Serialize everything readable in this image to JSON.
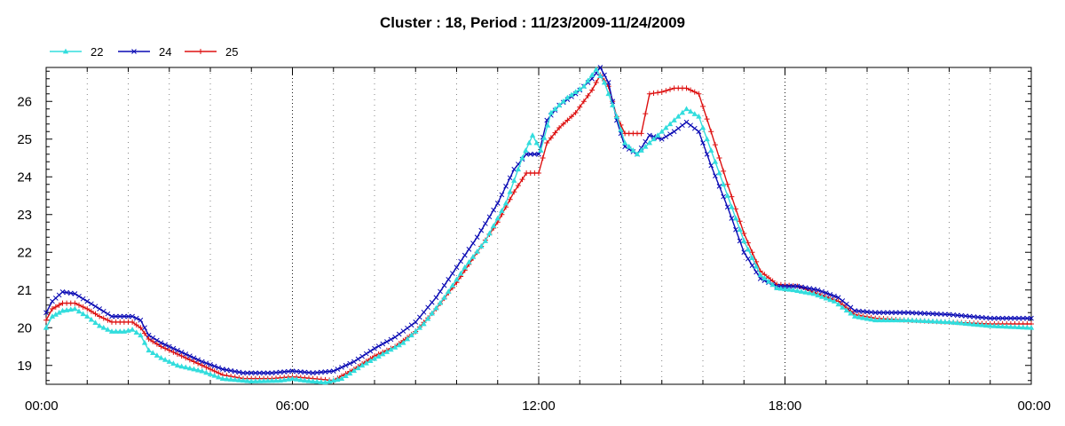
{
  "chart_data": {
    "type": "line",
    "title": "Cluster : 18, Period : 11/23/2009-11/24/2009",
    "xlabel": "",
    "ylabel": "",
    "x_ticks": [
      "00:00",
      "06:00",
      "12:00",
      "18:00",
      "00:00"
    ],
    "y_ticks": [
      "19",
      "20",
      "21",
      "22",
      "23",
      "24",
      "25",
      "26"
    ],
    "xlim_hours": [
      0,
      24
    ],
    "ylim": [
      18.5,
      26.9
    ],
    "grid": "vertical dotted at every 6 hours",
    "legend_position": "top-left",
    "series": [
      {
        "name": "22",
        "color": "#33dddd",
        "marker": "triangle",
        "points": [
          [
            0.0,
            20.0
          ],
          [
            0.15,
            20.3
          ],
          [
            0.4,
            20.45
          ],
          [
            0.7,
            20.5
          ],
          [
            1.0,
            20.3
          ],
          [
            1.3,
            20.05
          ],
          [
            1.6,
            19.9
          ],
          [
            1.9,
            19.9
          ],
          [
            2.1,
            19.95
          ],
          [
            2.3,
            19.8
          ],
          [
            2.5,
            19.4
          ],
          [
            2.8,
            19.2
          ],
          [
            3.2,
            19.0
          ],
          [
            3.8,
            18.85
          ],
          [
            4.3,
            18.65
          ],
          [
            5.0,
            18.58
          ],
          [
            5.7,
            18.6
          ],
          [
            6.0,
            18.65
          ],
          [
            6.3,
            18.6
          ],
          [
            6.8,
            18.55
          ],
          [
            7.2,
            18.65
          ],
          [
            7.7,
            19.0
          ],
          [
            8.2,
            19.3
          ],
          [
            8.7,
            19.6
          ],
          [
            9.2,
            20.1
          ],
          [
            9.7,
            20.8
          ],
          [
            10.2,
            21.6
          ],
          [
            10.7,
            22.3
          ],
          [
            11.2,
            23.3
          ],
          [
            11.6,
            24.5
          ],
          [
            11.85,
            25.1
          ],
          [
            12.05,
            24.7
          ],
          [
            12.3,
            25.7
          ],
          [
            12.7,
            26.1
          ],
          [
            13.1,
            26.4
          ],
          [
            13.4,
            26.85
          ],
          [
            13.6,
            26.5
          ],
          [
            13.9,
            25.6
          ],
          [
            14.1,
            24.9
          ],
          [
            14.4,
            24.6
          ],
          [
            14.7,
            24.9
          ],
          [
            15.0,
            25.2
          ],
          [
            15.3,
            25.5
          ],
          [
            15.6,
            25.8
          ],
          [
            15.9,
            25.6
          ],
          [
            16.2,
            24.7
          ],
          [
            16.6,
            23.5
          ],
          [
            17.0,
            22.3
          ],
          [
            17.4,
            21.4
          ],
          [
            17.8,
            21.05
          ],
          [
            18.2,
            21.0
          ],
          [
            18.7,
            20.9
          ],
          [
            19.2,
            20.7
          ],
          [
            19.7,
            20.3
          ],
          [
            20.2,
            20.2
          ],
          [
            21.0,
            20.2
          ],
          [
            22.0,
            20.15
          ],
          [
            23.0,
            20.05
          ],
          [
            24.0,
            20.0
          ]
        ]
      },
      {
        "name": "24",
        "color": "#0a0ab4",
        "marker": "x",
        "points": [
          [
            0.0,
            20.4
          ],
          [
            0.15,
            20.7
          ],
          [
            0.4,
            20.95
          ],
          [
            0.7,
            20.9
          ],
          [
            1.0,
            20.7
          ],
          [
            1.3,
            20.5
          ],
          [
            1.6,
            20.3
          ],
          [
            1.9,
            20.3
          ],
          [
            2.1,
            20.3
          ],
          [
            2.3,
            20.2
          ],
          [
            2.5,
            19.8
          ],
          [
            2.8,
            19.6
          ],
          [
            3.2,
            19.4
          ],
          [
            3.8,
            19.1
          ],
          [
            4.3,
            18.9
          ],
          [
            4.8,
            18.8
          ],
          [
            5.5,
            18.8
          ],
          [
            6.0,
            18.85
          ],
          [
            6.5,
            18.8
          ],
          [
            7.0,
            18.85
          ],
          [
            7.5,
            19.1
          ],
          [
            8.0,
            19.45
          ],
          [
            8.5,
            19.75
          ],
          [
            9.0,
            20.15
          ],
          [
            9.5,
            20.8
          ],
          [
            10.0,
            21.6
          ],
          [
            10.5,
            22.4
          ],
          [
            11.0,
            23.3
          ],
          [
            11.4,
            24.2
          ],
          [
            11.7,
            24.6
          ],
          [
            12.0,
            24.6
          ],
          [
            12.2,
            25.5
          ],
          [
            12.5,
            25.9
          ],
          [
            12.9,
            26.2
          ],
          [
            13.3,
            26.6
          ],
          [
            13.5,
            26.9
          ],
          [
            13.7,
            26.5
          ],
          [
            13.9,
            25.5
          ],
          [
            14.1,
            24.8
          ],
          [
            14.4,
            24.6
          ],
          [
            14.7,
            25.1
          ],
          [
            15.0,
            25.0
          ],
          [
            15.3,
            25.2
          ],
          [
            15.6,
            25.45
          ],
          [
            15.9,
            25.2
          ],
          [
            16.2,
            24.3
          ],
          [
            16.6,
            23.2
          ],
          [
            17.0,
            22.0
          ],
          [
            17.4,
            21.3
          ],
          [
            17.8,
            21.1
          ],
          [
            18.3,
            21.1
          ],
          [
            18.8,
            21.0
          ],
          [
            19.3,
            20.8
          ],
          [
            19.7,
            20.45
          ],
          [
            20.2,
            20.4
          ],
          [
            21.0,
            20.4
          ],
          [
            22.0,
            20.35
          ],
          [
            23.0,
            20.25
          ],
          [
            24.0,
            20.25
          ]
        ]
      },
      {
        "name": "25",
        "color": "#dd1010",
        "marker": "plus",
        "points": [
          [
            0.0,
            20.2
          ],
          [
            0.15,
            20.5
          ],
          [
            0.4,
            20.65
          ],
          [
            0.7,
            20.65
          ],
          [
            1.0,
            20.5
          ],
          [
            1.3,
            20.3
          ],
          [
            1.6,
            20.15
          ],
          [
            1.9,
            20.15
          ],
          [
            2.1,
            20.15
          ],
          [
            2.3,
            20.0
          ],
          [
            2.5,
            19.7
          ],
          [
            2.8,
            19.5
          ],
          [
            3.2,
            19.3
          ],
          [
            3.8,
            19.0
          ],
          [
            4.3,
            18.75
          ],
          [
            4.8,
            18.65
          ],
          [
            5.5,
            18.65
          ],
          [
            6.0,
            18.7
          ],
          [
            6.5,
            18.65
          ],
          [
            7.0,
            18.6
          ],
          [
            7.5,
            18.9
          ],
          [
            8.0,
            19.25
          ],
          [
            8.5,
            19.5
          ],
          [
            9.0,
            19.9
          ],
          [
            9.5,
            20.5
          ],
          [
            10.0,
            21.2
          ],
          [
            10.5,
            22.0
          ],
          [
            11.0,
            22.8
          ],
          [
            11.4,
            23.6
          ],
          [
            11.7,
            24.1
          ],
          [
            12.0,
            24.1
          ],
          [
            12.2,
            24.9
          ],
          [
            12.5,
            25.3
          ],
          [
            12.9,
            25.7
          ],
          [
            13.3,
            26.3
          ],
          [
            13.5,
            26.7
          ],
          [
            13.7,
            26.4
          ],
          [
            13.9,
            25.6
          ],
          [
            14.1,
            25.15
          ],
          [
            14.5,
            25.15
          ],
          [
            14.7,
            26.2
          ],
          [
            15.0,
            26.25
          ],
          [
            15.3,
            26.35
          ],
          [
            15.6,
            26.35
          ],
          [
            15.9,
            26.2
          ],
          [
            16.2,
            25.2
          ],
          [
            16.6,
            23.8
          ],
          [
            17.0,
            22.5
          ],
          [
            17.4,
            21.5
          ],
          [
            17.8,
            21.15
          ],
          [
            18.3,
            21.1
          ],
          [
            18.8,
            20.9
          ],
          [
            19.3,
            20.7
          ],
          [
            19.7,
            20.35
          ],
          [
            20.2,
            20.25
          ],
          [
            21.0,
            20.2
          ],
          [
            22.0,
            20.15
          ],
          [
            23.0,
            20.1
          ],
          [
            24.0,
            20.1
          ]
        ]
      }
    ]
  }
}
